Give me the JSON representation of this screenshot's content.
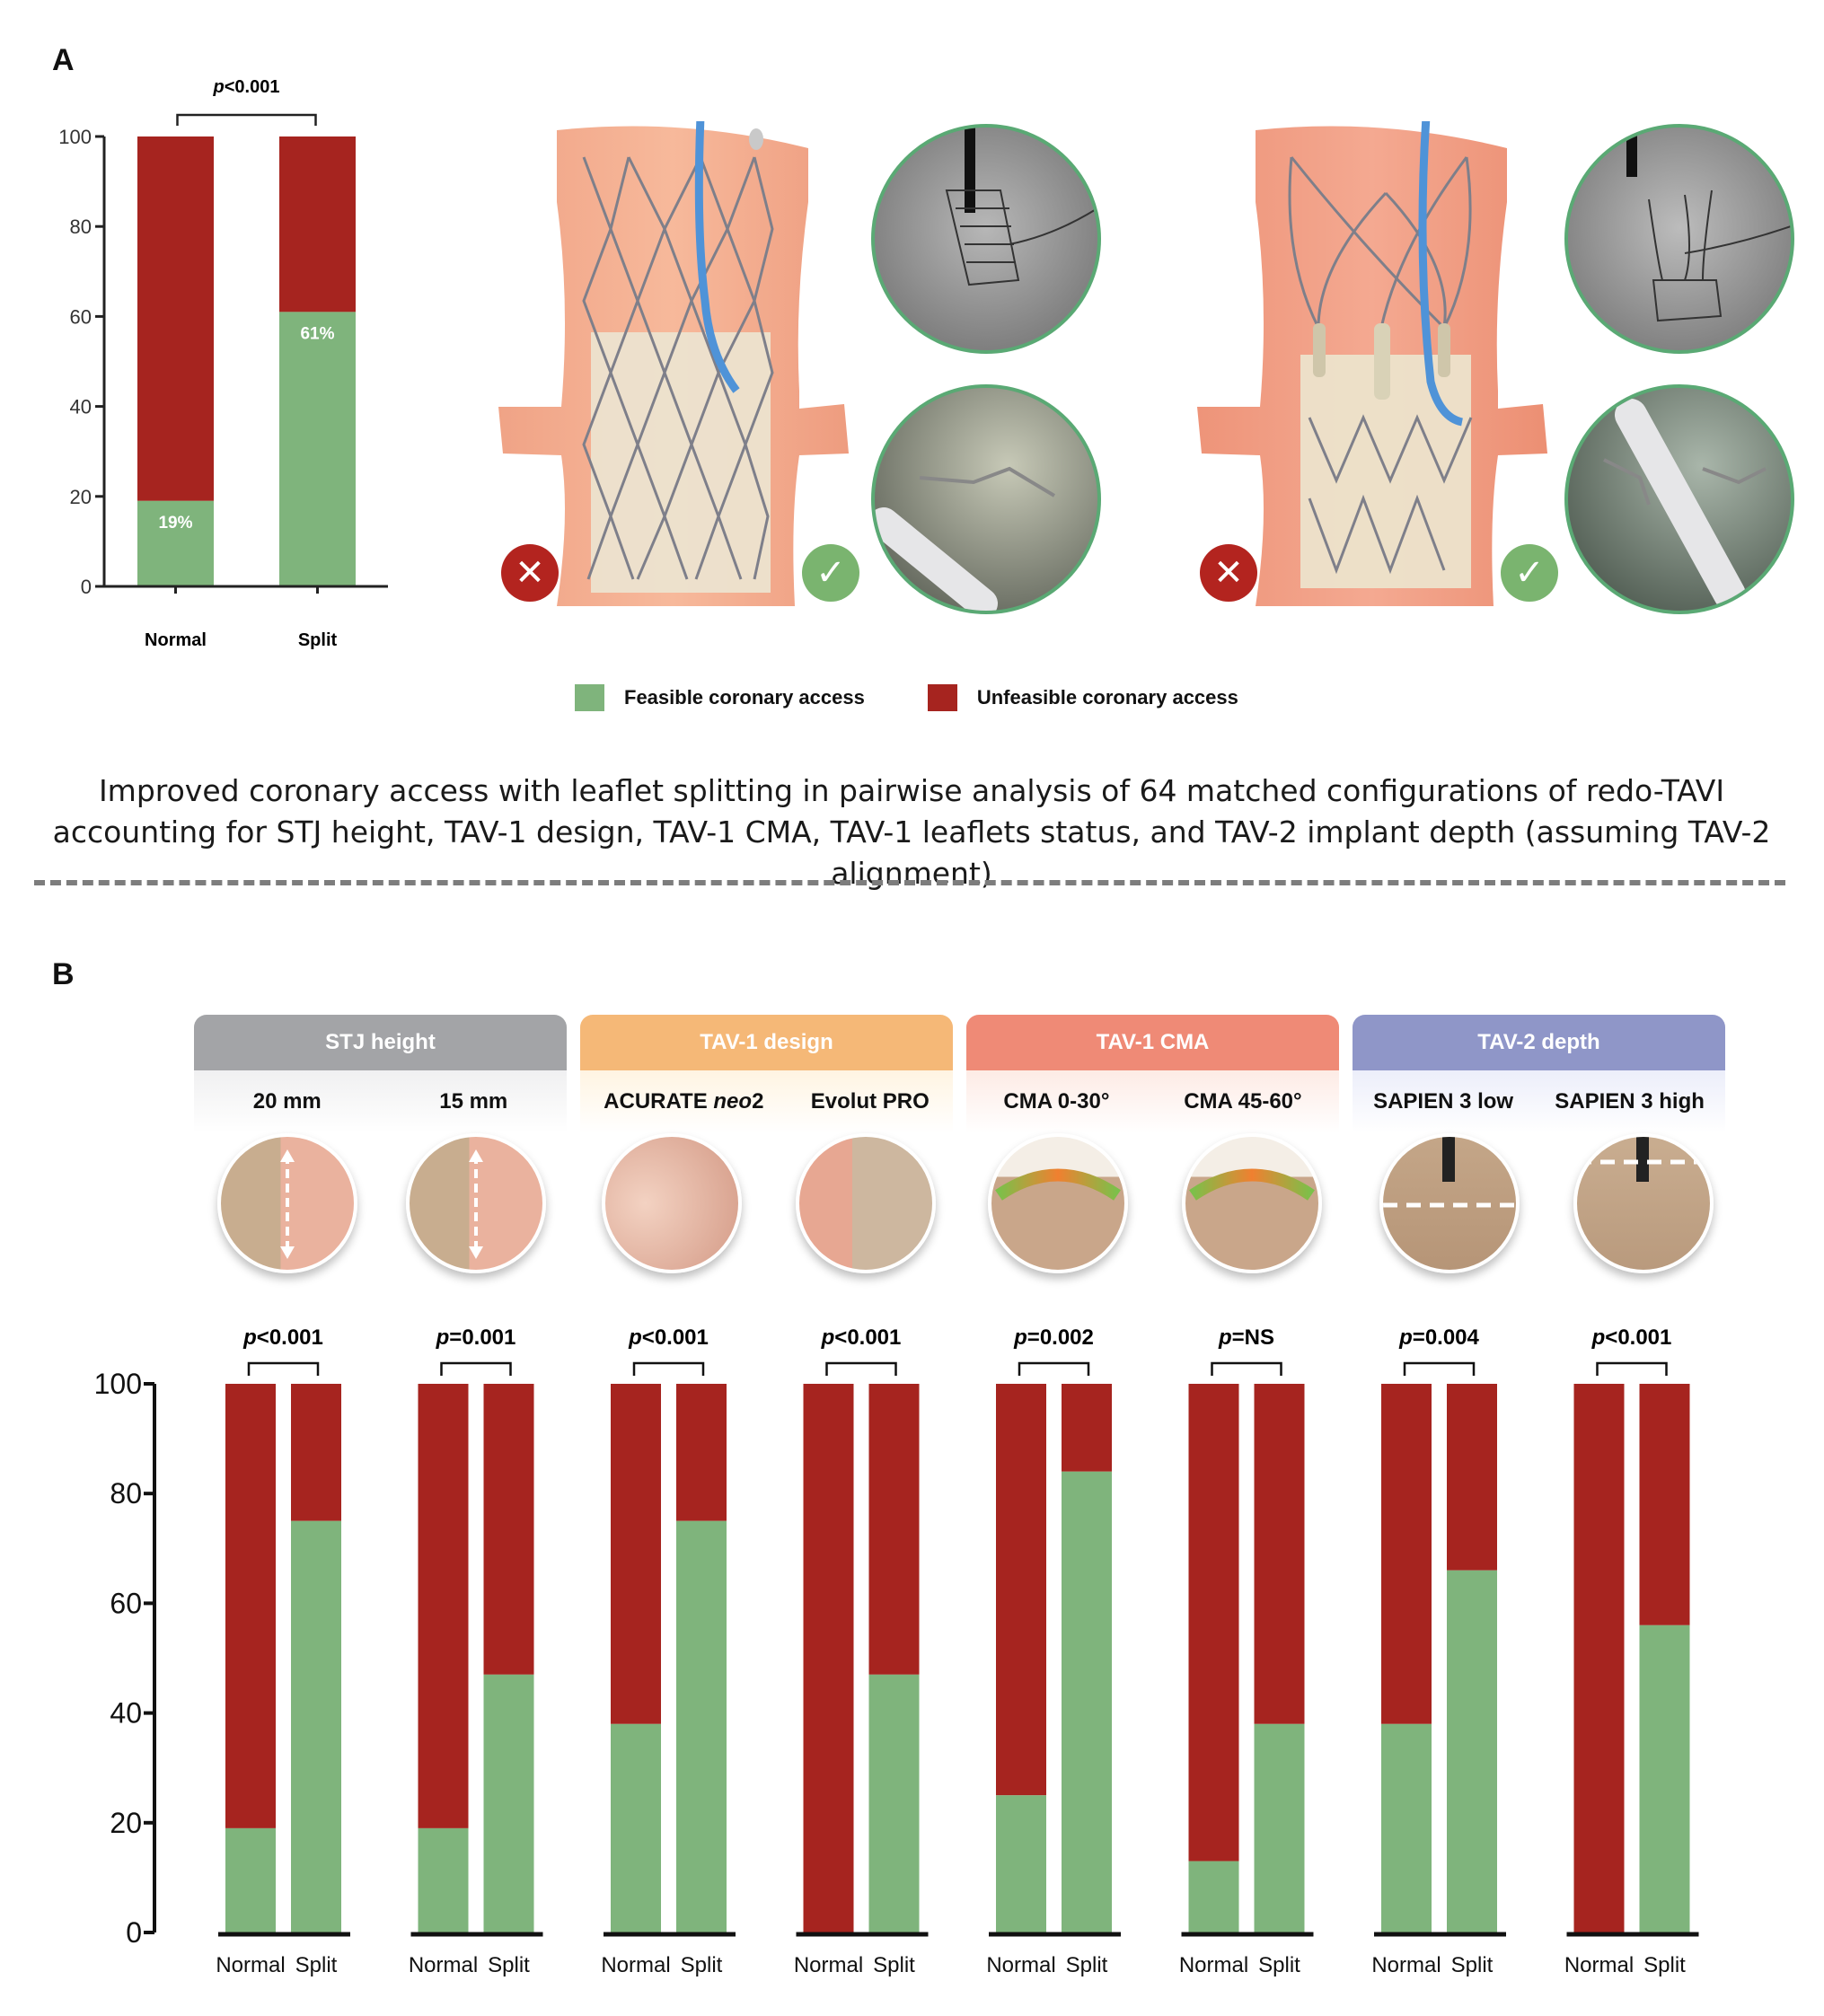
{
  "panel_a": {
    "label": "A",
    "legend": {
      "feasible_label": "Feasible coronary access",
      "unfeasible_label": "Unfeasible coronary access",
      "feasible_color": "#7fb47c",
      "unfeasible_color": "#a6241f"
    },
    "illustrations": [
      {
        "name": "Evolut PRO redo-TAVI",
        "no_access_icon": "x-icon",
        "access_icon": "check-icon",
        "photos": [
          "fluoroscopy image",
          "endoscopic view"
        ]
      },
      {
        "name": "ACURATE neo2 redo-TAVI",
        "no_access_icon": "x-icon",
        "access_icon": "check-icon",
        "photos": [
          "fluoroscopy image",
          "endoscopic view"
        ]
      }
    ],
    "caption_line1": "Improved coronary access with leaflet splitting in pairwise analysis of 64 matched configurations of redo-TAVI",
    "caption_line2": "accounting for STJ height, TAV-1 design, TAV-1 CMA, TAV-1 leaflets status, and TAV-2 implant depth (assuming TAV-2 alignment)"
  },
  "panel_b": {
    "label": "B",
    "categories": [
      {
        "title": "STJ height",
        "color": "#a3a4a7",
        "sub_bg": "#f2f2f3",
        "items": [
          {
            "label": "20 mm"
          },
          {
            "label": "15 mm"
          }
        ]
      },
      {
        "title": "TAV-1 design",
        "color": "#f5b877",
        "sub_bg": "#fff6e8",
        "items": [
          {
            "label": "ACURATE ",
            "italic": "neo",
            "suffix": "2"
          },
          {
            "label": "Evolut PRO"
          }
        ]
      },
      {
        "title": "TAV-1 CMA",
        "color": "#ef8a76",
        "sub_bg": "#fdeee9",
        "items": [
          {
            "label": "CMA 0-30°"
          },
          {
            "label": "CMA 45-60°"
          }
        ]
      },
      {
        "title": "TAV-2 depth",
        "color": "#8f96c8",
        "sub_bg": "#eef0fa",
        "items": [
          {
            "label": "SAPIEN 3 low"
          },
          {
            "label": "SAPIEN 3 high"
          }
        ]
      }
    ]
  },
  "chart_data": [
    {
      "type": "bar",
      "stacked": true,
      "title": "",
      "categories": [
        "Normal",
        "Split"
      ],
      "series": [
        {
          "name": "Feasible coronary access",
          "values": [
            19,
            61
          ]
        },
        {
          "name": "Unfeasible coronary access",
          "values": [
            81,
            39
          ]
        }
      ],
      "data_labels": [
        "19%",
        "61%"
      ],
      "ylim": [
        0,
        100
      ],
      "yticks": [
        0,
        20,
        40,
        60,
        80,
        100
      ],
      "annotation": {
        "prefix": "p",
        "text": "<0.001"
      },
      "legend": "bottom-center"
    },
    {
      "type": "bar",
      "stacked": true,
      "ylim": [
        0,
        100
      ],
      "yticks": [
        0,
        20,
        40,
        60,
        80,
        100
      ],
      "bar_labels": [
        "Normal",
        "Split"
      ],
      "groups": [
        {
          "name": "20 mm",
          "p_prefix": "p",
          "p_text": "<0.001",
          "feasible": [
            19,
            75
          ]
        },
        {
          "name": "15 mm",
          "p_prefix": "p",
          "p_text": "=0.001",
          "feasible": [
            19,
            47
          ]
        },
        {
          "name": "ACURATE neo2",
          "p_prefix": "p",
          "p_text": "<0.001",
          "feasible": [
            38,
            75
          ]
        },
        {
          "name": "Evolut PRO",
          "p_prefix": "p",
          "p_text": "<0.001",
          "feasible": [
            0,
            47
          ]
        },
        {
          "name": "CMA 0-30°",
          "p_prefix": "p",
          "p_text": "=0.002",
          "feasible": [
            25,
            84
          ]
        },
        {
          "name": "CMA 45-60°",
          "p_prefix": "p",
          "p_text": "=NS",
          "feasible": [
            13,
            38
          ]
        },
        {
          "name": "SAPIEN 3 low",
          "p_prefix": "p",
          "p_text": "=0.004",
          "feasible": [
            38,
            66
          ]
        },
        {
          "name": "SAPIEN 3 high",
          "p_prefix": "p",
          "p_text": "<0.001",
          "feasible": [
            0,
            56
          ]
        }
      ],
      "series": [
        {
          "name": "Feasible coronary access",
          "color": "#7fb47c"
        },
        {
          "name": "Unfeasible coronary access",
          "color": "#a6241f"
        }
      ]
    }
  ]
}
